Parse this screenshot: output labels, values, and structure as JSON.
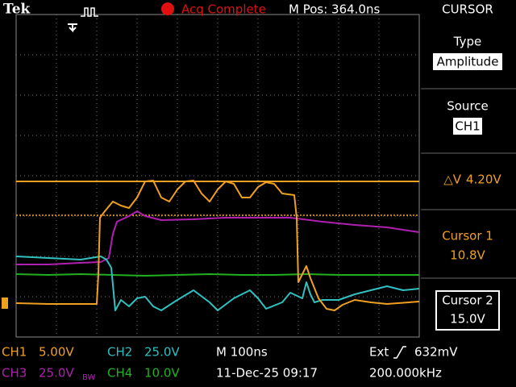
{
  "header": {
    "brand": "Tek",
    "status": "Acq Complete",
    "position": "M Pos: 364.0ns"
  },
  "menu": {
    "title": "CURSOR",
    "type": {
      "label": "Type",
      "value": "Amplitude"
    },
    "source": {
      "label": "Source",
      "value": "CH1"
    },
    "delta": {
      "label": "△V",
      "value": "4.20V"
    },
    "cursor1": {
      "label": "Cursor 1",
      "value": "10.8V"
    },
    "cursor2": {
      "label": "Cursor 2",
      "value": "15.0V"
    }
  },
  "footer": {
    "channels": [
      {
        "name": "CH1",
        "scale": "5.00V"
      },
      {
        "name": "CH2",
        "scale": "25.0V"
      },
      {
        "name": "CH3",
        "scale": "25.0V",
        "suffix": "BW"
      },
      {
        "name": "CH4",
        "scale": "10.0V"
      }
    ],
    "timebase": "M 100ns",
    "trigger": {
      "source": "Ext",
      "level": "632mV"
    },
    "date": "11-Dec-25 09:17",
    "frequency": "200.000kHz"
  }
}
